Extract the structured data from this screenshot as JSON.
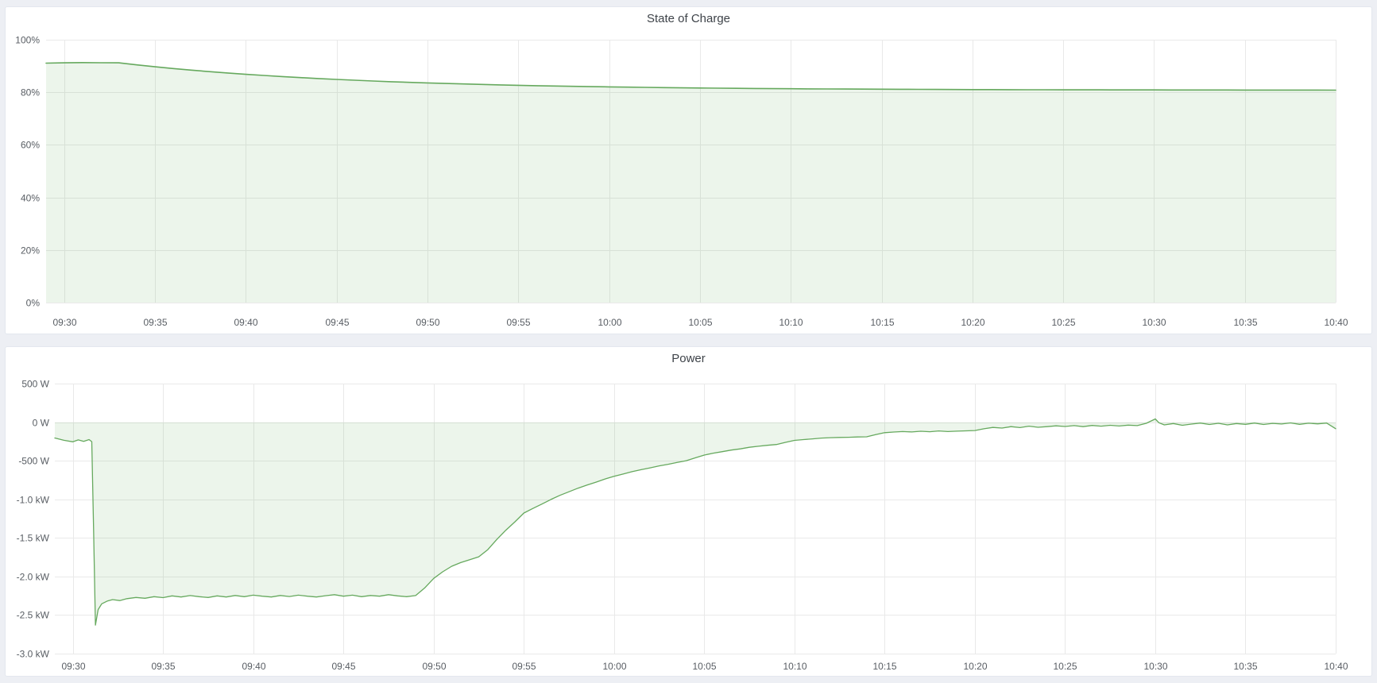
{
  "page": {
    "background_color": "#edeff4",
    "panel_background": "#ffffff",
    "accent_green": "#66a95e"
  },
  "panels": [
    {
      "title": "State of Charge"
    },
    {
      "title": "Power"
    }
  ],
  "chart_data": [
    {
      "type": "area",
      "title": "State of Charge",
      "ylabel": "",
      "xlabel": "",
      "yunit": "%",
      "ylim": [
        0,
        100
      ],
      "y_range": [
        0,
        100
      ],
      "y_ticks": [
        100,
        80,
        60,
        40,
        20,
        0
      ],
      "y_tick_labels": [
        "100%",
        "80%",
        "60%",
        "40%",
        "20%",
        "0%"
      ],
      "x_start_time": "09:29",
      "x_end_time": "10:40",
      "x_range": [
        0,
        71
      ],
      "x_ticks": [
        1,
        6,
        11,
        16,
        21,
        26,
        31,
        36,
        41,
        46,
        51,
        56,
        61,
        66,
        71
      ],
      "x_tick_labels": [
        "09:30",
        "09:35",
        "09:40",
        "09:45",
        "09:50",
        "09:55",
        "10:00",
        "10:05",
        "10:10",
        "10:15",
        "10:20",
        "10:25",
        "10:30",
        "10:35",
        "10:40"
      ],
      "grid": true,
      "legend": "none",
      "baseline": 0,
      "line_color": "#66a95e",
      "fill_color": "rgba(102,169,94,0.12)",
      "x_step_minutes": 1,
      "values": [
        91.1,
        91.2,
        91.3,
        91.25,
        91.2,
        90.43,
        89.7,
        89.04,
        88.42,
        87.85,
        87.33,
        86.84,
        86.39,
        85.97,
        85.58,
        85.22,
        84.89,
        84.58,
        84.3,
        84.03,
        83.79,
        83.56,
        83.35,
        83.16,
        82.98,
        82.82,
        82.66,
        82.52,
        82.39,
        82.27,
        82.15,
        82.05,
        81.95,
        81.86,
        81.78,
        81.7,
        81.63,
        81.57,
        81.51,
        81.45,
        81.4,
        81.35,
        81.31,
        81.27,
        81.23,
        81.2,
        81.17,
        81.14,
        81.11,
        81.08,
        81.06,
        81.04,
        81.02,
        81.0,
        80.98,
        80.97,
        80.95,
        80.94,
        80.93,
        80.92,
        80.91,
        80.9,
        80.89,
        80.88,
        80.87,
        80.87,
        80.86,
        80.85,
        80.85,
        80.84,
        80.84,
        80.83
      ]
    },
    {
      "type": "area",
      "title": "Power",
      "ylabel": "",
      "xlabel": "",
      "yunit": "W",
      "ylim": [
        -3000,
        500
      ],
      "y_range": [
        -3000,
        500
      ],
      "y_ticks": [
        500,
        0,
        -500,
        -1000,
        -1500,
        -2000,
        -2500,
        -3000
      ],
      "y_tick_labels": [
        "500 W",
        "0 W",
        "-500 W",
        "-1.0 kW",
        "-1.5 kW",
        "-2.0 kW",
        "-2.5 kW",
        "-3.0 kW"
      ],
      "x_start_time": "09:29",
      "x_end_time": "10:40",
      "x_range": [
        0,
        71
      ],
      "x_ticks": [
        1,
        6,
        11,
        16,
        21,
        26,
        31,
        36,
        41,
        46,
        51,
        56,
        61,
        66,
        71
      ],
      "x_tick_labels": [
        "09:30",
        "09:35",
        "09:40",
        "09:45",
        "09:50",
        "09:55",
        "10:00",
        "10:05",
        "10:10",
        "10:15",
        "10:20",
        "10:25",
        "10:30",
        "10:35",
        "10:40"
      ],
      "grid": true,
      "legend": "none",
      "baseline": 0,
      "line_color": "#66a95e",
      "fill_color": "rgba(102,169,94,0.12)",
      "points": [
        [
          0,
          -205
        ],
        [
          0.5,
          -235
        ],
        [
          1,
          -255
        ],
        [
          1.3,
          -230
        ],
        [
          1.6,
          -248
        ],
        [
          1.9,
          -226
        ],
        [
          2.05,
          -252
        ],
        [
          2.15,
          -1400
        ],
        [
          2.25,
          -2630
        ],
        [
          2.4,
          -2430
        ],
        [
          2.6,
          -2355
        ],
        [
          2.9,
          -2320
        ],
        [
          3.2,
          -2300
        ],
        [
          3.6,
          -2312
        ],
        [
          4,
          -2288
        ],
        [
          4.5,
          -2272
        ],
        [
          5,
          -2282
        ],
        [
          5.5,
          -2262
        ],
        [
          6,
          -2274
        ],
        [
          6.5,
          -2252
        ],
        [
          7,
          -2266
        ],
        [
          7.5,
          -2248
        ],
        [
          8,
          -2262
        ],
        [
          8.5,
          -2272
        ],
        [
          9,
          -2252
        ],
        [
          9.5,
          -2266
        ],
        [
          10,
          -2246
        ],
        [
          10.5,
          -2262
        ],
        [
          11,
          -2242
        ],
        [
          11.5,
          -2256
        ],
        [
          12,
          -2266
        ],
        [
          12.5,
          -2246
        ],
        [
          13,
          -2260
        ],
        [
          13.5,
          -2242
        ],
        [
          14,
          -2256
        ],
        [
          14.5,
          -2266
        ],
        [
          15,
          -2250
        ],
        [
          15.5,
          -2236
        ],
        [
          16,
          -2256
        ],
        [
          16.5,
          -2242
        ],
        [
          17,
          -2262
        ],
        [
          17.5,
          -2246
        ],
        [
          18,
          -2256
        ],
        [
          18.5,
          -2236
        ],
        [
          19,
          -2252
        ],
        [
          19.5,
          -2262
        ],
        [
          20,
          -2248
        ],
        [
          20.5,
          -2150
        ],
        [
          21,
          -2025
        ],
        [
          21.5,
          -1940
        ],
        [
          22,
          -1868
        ],
        [
          22.5,
          -1820
        ],
        [
          23,
          -1782
        ],
        [
          23.5,
          -1745
        ],
        [
          24,
          -1652
        ],
        [
          24.5,
          -1520
        ],
        [
          25,
          -1400
        ],
        [
          25.5,
          -1292
        ],
        [
          26,
          -1178
        ],
        [
          26.5,
          -1118
        ],
        [
          27,
          -1062
        ],
        [
          27.5,
          -1002
        ],
        [
          28,
          -948
        ],
        [
          28.5,
          -902
        ],
        [
          29,
          -856
        ],
        [
          29.5,
          -816
        ],
        [
          30,
          -778
        ],
        [
          30.5,
          -736
        ],
        [
          31,
          -702
        ],
        [
          31.5,
          -672
        ],
        [
          32,
          -642
        ],
        [
          32.5,
          -616
        ],
        [
          33,
          -592
        ],
        [
          33.5,
          -566
        ],
        [
          34,
          -546
        ],
        [
          34.5,
          -522
        ],
        [
          35,
          -500
        ],
        [
          35.5,
          -462
        ],
        [
          36,
          -426
        ],
        [
          36.5,
          -402
        ],
        [
          37,
          -382
        ],
        [
          37.5,
          -362
        ],
        [
          38,
          -346
        ],
        [
          38.5,
          -326
        ],
        [
          39,
          -312
        ],
        [
          39.5,
          -300
        ],
        [
          40,
          -290
        ],
        [
          40.5,
          -262
        ],
        [
          41,
          -236
        ],
        [
          41.5,
          -226
        ],
        [
          42,
          -216
        ],
        [
          42.5,
          -206
        ],
        [
          43,
          -201
        ],
        [
          43.5,
          -198
        ],
        [
          44,
          -196
        ],
        [
          44.5,
          -192
        ],
        [
          45,
          -190
        ],
        [
          45.5,
          -162
        ],
        [
          46,
          -136
        ],
        [
          46.5,
          -128
        ],
        [
          47,
          -122
        ],
        [
          47.5,
          -127
        ],
        [
          48,
          -118
        ],
        [
          48.5,
          -124
        ],
        [
          49,
          -114
        ],
        [
          49.5,
          -122
        ],
        [
          50,
          -117
        ],
        [
          50.5,
          -112
        ],
        [
          51,
          -108
        ],
        [
          51.5,
          -86
        ],
        [
          52,
          -68
        ],
        [
          52.5,
          -76
        ],
        [
          53,
          -58
        ],
        [
          53.5,
          -70
        ],
        [
          54,
          -52
        ],
        [
          54.5,
          -66
        ],
        [
          55,
          -58
        ],
        [
          55.5,
          -48
        ],
        [
          56,
          -56
        ],
        [
          56.5,
          -45
        ],
        [
          57,
          -58
        ],
        [
          57.5,
          -42
        ],
        [
          58,
          -52
        ],
        [
          58.5,
          -40
        ],
        [
          59,
          -50
        ],
        [
          59.5,
          -38
        ],
        [
          60,
          -45
        ],
        [
          60.5,
          -15
        ],
        [
          61,
          42
        ],
        [
          61.2,
          -8
        ],
        [
          61.5,
          -35
        ],
        [
          62,
          -18
        ],
        [
          62.5,
          -40
        ],
        [
          63,
          -25
        ],
        [
          63.5,
          -12
        ],
        [
          64,
          -30
        ],
        [
          64.5,
          -15
        ],
        [
          65,
          -35
        ],
        [
          65.5,
          -18
        ],
        [
          66,
          -28
        ],
        [
          66.5,
          -12
        ],
        [
          67,
          -30
        ],
        [
          67.5,
          -16
        ],
        [
          68,
          -24
        ],
        [
          68.5,
          -10
        ],
        [
          69,
          -28
        ],
        [
          69.5,
          -14
        ],
        [
          70,
          -22
        ],
        [
          70.5,
          -12
        ],
        [
          71,
          -85
        ]
      ]
    }
  ]
}
